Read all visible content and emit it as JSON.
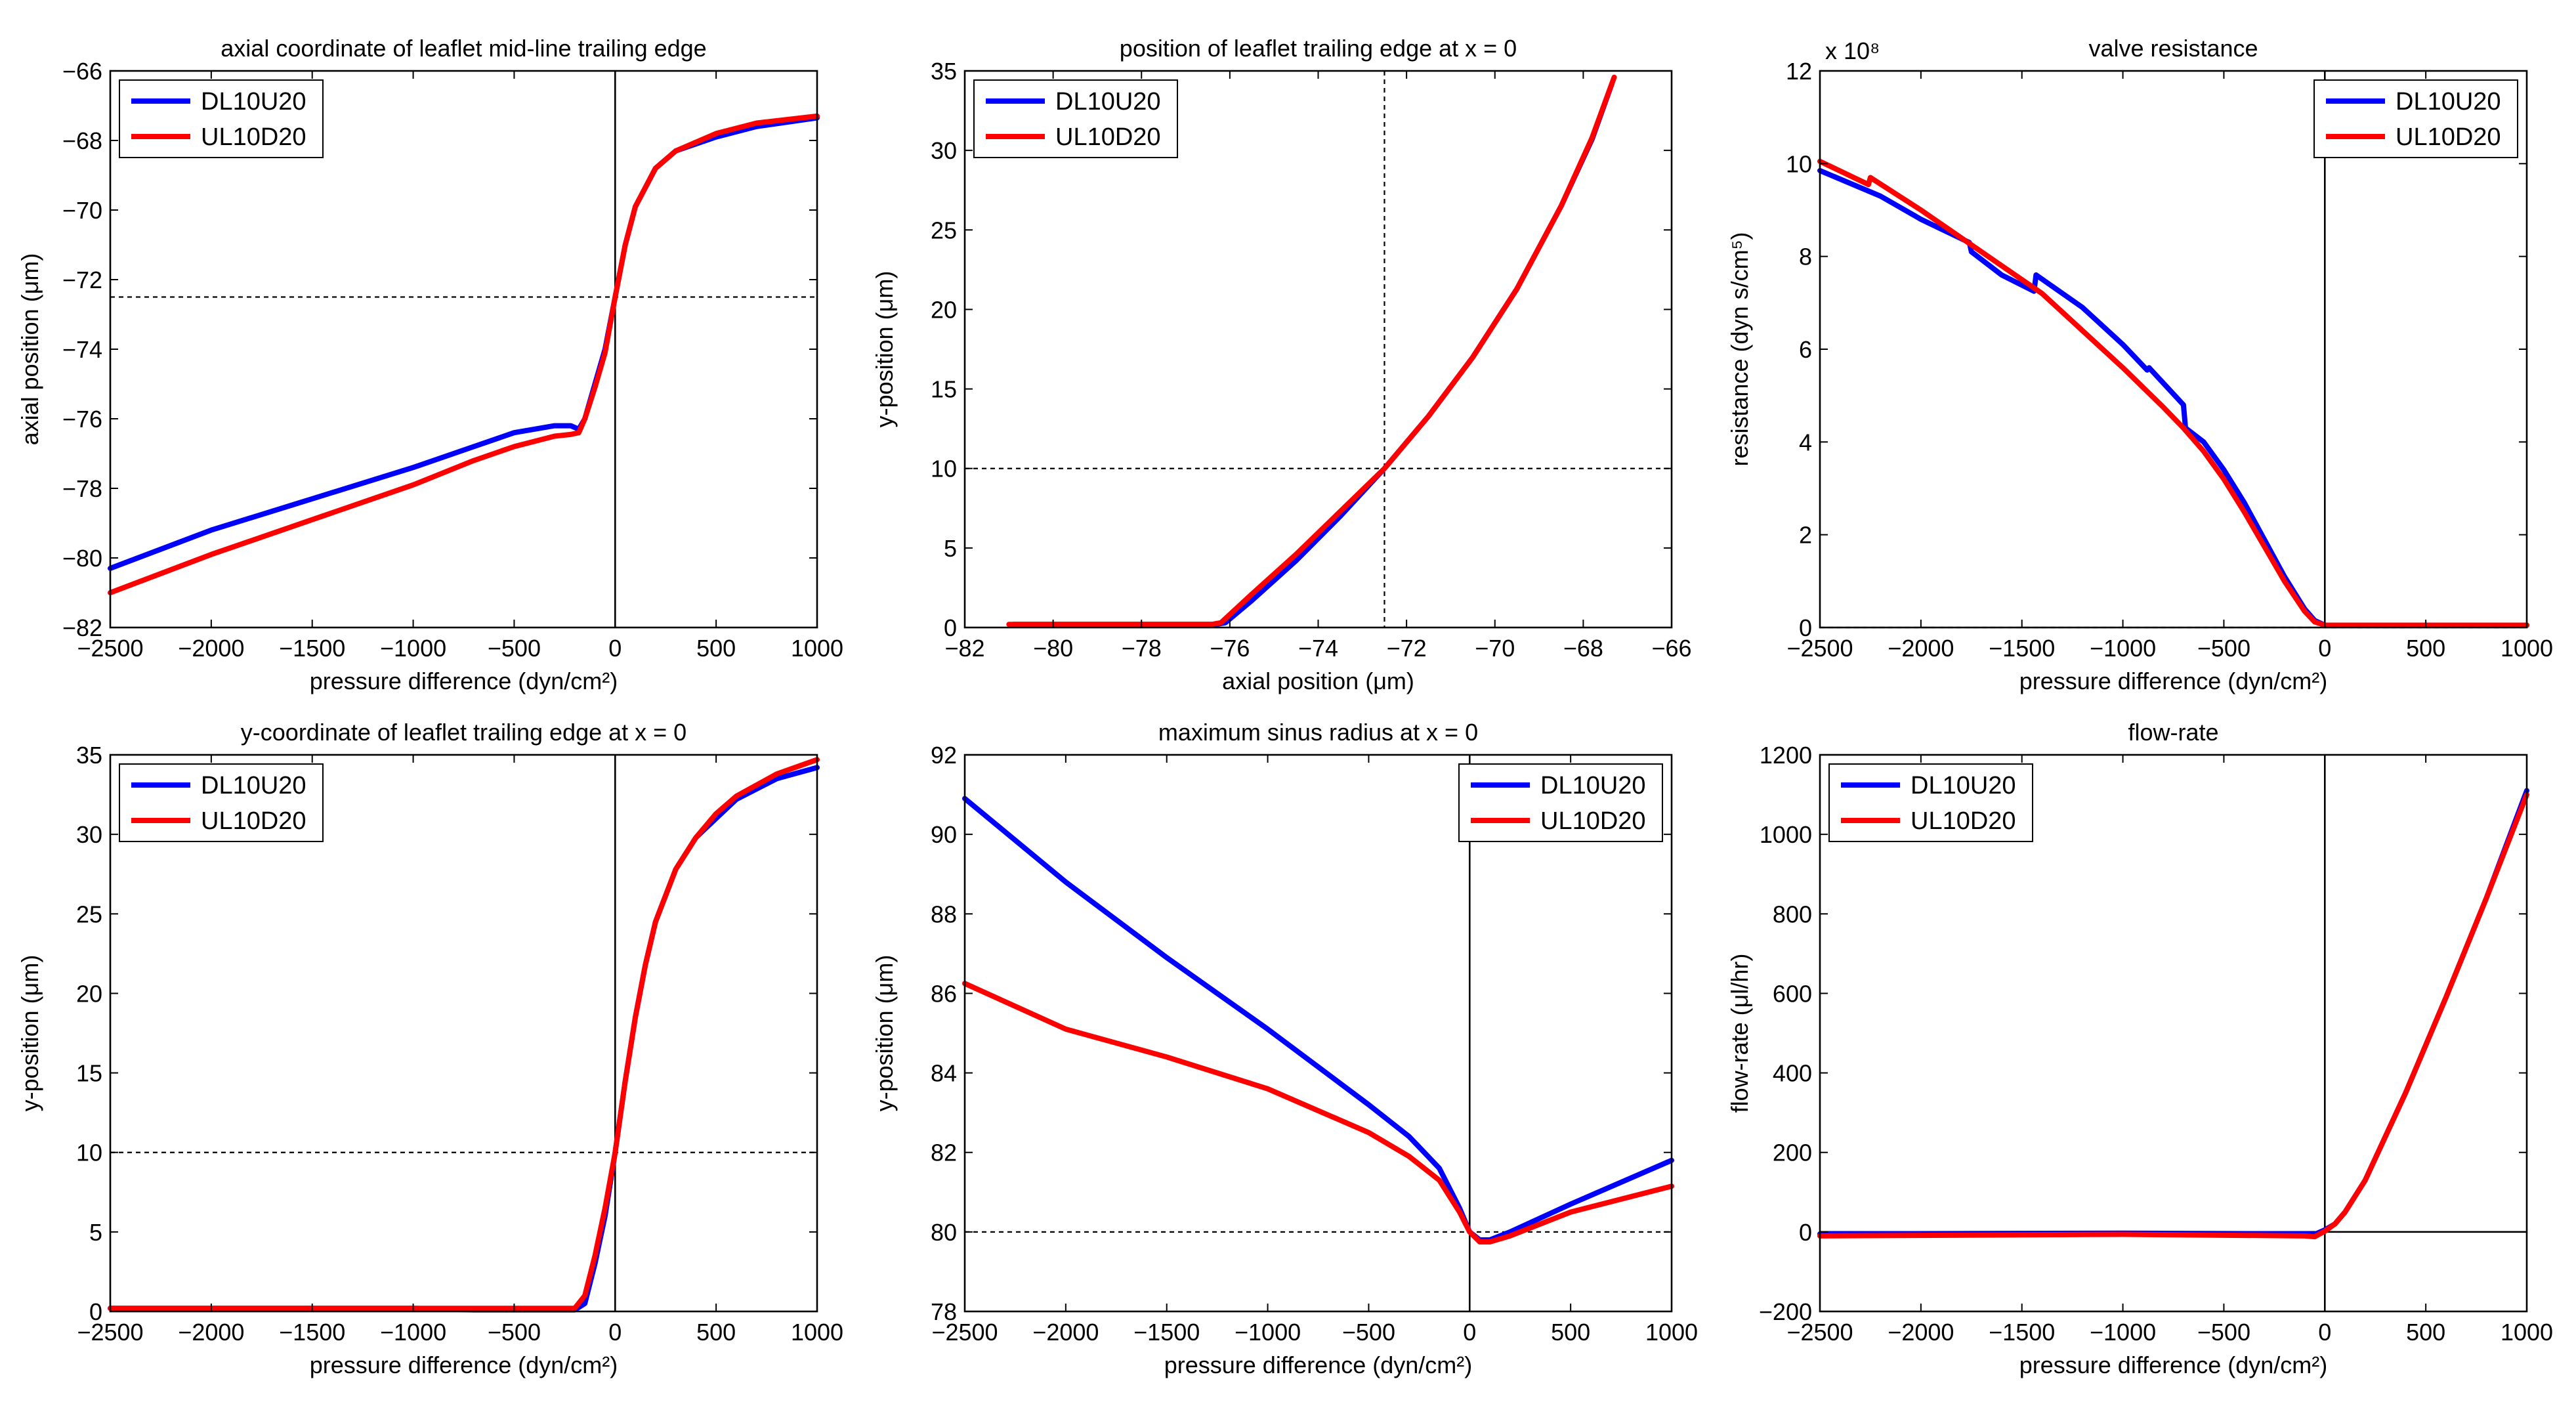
{
  "figure": {
    "colors": {
      "blue": "#0000ff",
      "red": "#ff0000",
      "axis": "#000000",
      "background": "#ffffff"
    },
    "legend_entries": [
      "DL10U20",
      "UL10D20"
    ]
  },
  "chart_data": [
    {
      "id": "a",
      "type": "line",
      "title": "axial coordinate of leaflet mid-line trailing edge",
      "xlabel": "pressure difference (dyn/cm²)",
      "ylabel": "axial position (μm)",
      "xlim": [
        -2500,
        1000
      ],
      "ylim": [
        -82,
        -66
      ],
      "xticks": [
        -2500,
        -2000,
        -1500,
        -1000,
        -500,
        0,
        500,
        1000
      ],
      "yticks": [
        -82,
        -80,
        -78,
        -76,
        -74,
        -72,
        -70,
        -68,
        -66
      ],
      "legend_position": "top-left",
      "ref_lines": [
        {
          "type": "h",
          "value": -72.5,
          "style": "dotted"
        },
        {
          "type": "v",
          "value": 0,
          "style": "solid"
        }
      ],
      "series": [
        {
          "name": "DL10U20",
          "color": "#0000ff",
          "x": [
            -2500,
            -2000,
            -1500,
            -1000,
            -700,
            -500,
            -300,
            -220,
            -180,
            -150,
            -100,
            -50,
            0,
            50,
            100,
            200,
            300,
            500,
            700,
            1000
          ],
          "y": [
            -80.3,
            -79.2,
            -78.3,
            -77.4,
            -76.8,
            -76.4,
            -76.2,
            -76.2,
            -76.3,
            -76.0,
            -75.0,
            -74.0,
            -72.5,
            -71.0,
            -69.9,
            -68.8,
            -68.3,
            -67.9,
            -67.6,
            -67.35
          ]
        },
        {
          "name": "UL10D20",
          "color": "#ff0000",
          "x": [
            -2500,
            -2000,
            -1500,
            -1000,
            -700,
            -500,
            -300,
            -220,
            -180,
            -150,
            -100,
            -50,
            0,
            50,
            100,
            200,
            300,
            500,
            700,
            1000
          ],
          "y": [
            -81.0,
            -79.9,
            -78.9,
            -77.9,
            -77.2,
            -76.8,
            -76.5,
            -76.45,
            -76.4,
            -76.0,
            -75.1,
            -74.1,
            -72.5,
            -71.0,
            -69.9,
            -68.8,
            -68.3,
            -67.8,
            -67.5,
            -67.3
          ]
        }
      ]
    },
    {
      "id": "b",
      "type": "line",
      "title": "position of leaflet trailing edge at x = 0",
      "xlabel": "axial position (μm)",
      "ylabel": "y-position (μm)",
      "xlim": [
        -82,
        -66
      ],
      "ylim": [
        0,
        35
      ],
      "xticks": [
        -82,
        -80,
        -78,
        -76,
        -74,
        -72,
        -70,
        -68,
        -66
      ],
      "yticks": [
        0,
        5,
        10,
        15,
        20,
        25,
        30,
        35
      ],
      "legend_position": "top-left",
      "ref_lines": [
        {
          "type": "h",
          "value": 10,
          "style": "dotted"
        },
        {
          "type": "v",
          "value": -72.5,
          "style": "dotted"
        }
      ],
      "series": [
        {
          "name": "DL10U20",
          "color": "#0000ff",
          "x": [
            -80.9,
            -77.0,
            -76.3,
            -76.1,
            -75.5,
            -74.5,
            -73.5,
            -72.5,
            -71.5,
            -70.5,
            -69.5,
            -68.5,
            -67.8,
            -67.35
          ],
          "y": [
            0.2,
            0.2,
            0.2,
            0.3,
            1.7,
            4.2,
            7.0,
            10.0,
            13.3,
            17.0,
            21.3,
            26.5,
            30.7,
            34.2
          ]
        },
        {
          "name": "UL10D20",
          "color": "#ff0000",
          "x": [
            -81.0,
            -77.0,
            -76.4,
            -76.2,
            -75.5,
            -74.5,
            -73.5,
            -72.5,
            -71.5,
            -70.5,
            -69.5,
            -68.5,
            -67.8,
            -67.3
          ],
          "y": [
            0.2,
            0.2,
            0.2,
            0.3,
            2.1,
            4.6,
            7.3,
            10.0,
            13.3,
            17.0,
            21.3,
            26.5,
            30.8,
            34.6
          ]
        }
      ]
    },
    {
      "id": "c",
      "type": "line",
      "title": "valve resistance",
      "xlabel": "pressure difference (dyn/cm²)",
      "ylabel": "resistance (dyn s/cm⁵)",
      "y_multiplier": "x 10⁸",
      "xlim": [
        -2500,
        1000
      ],
      "ylim": [
        0,
        12
      ],
      "xticks": [
        -2500,
        -2000,
        -1500,
        -1000,
        -500,
        0,
        500,
        1000
      ],
      "yticks": [
        0,
        2,
        4,
        6,
        8,
        10,
        12
      ],
      "legend_position": "top-right",
      "ref_lines": [
        {
          "type": "h",
          "value": 0,
          "style": "dotted"
        },
        {
          "type": "v",
          "value": 0,
          "style": "solid"
        }
      ],
      "series": [
        {
          "name": "DL10U20",
          "color": "#0000ff",
          "x": [
            -2500,
            -2200,
            -2000,
            -1760,
            -1750,
            -1600,
            -1440,
            -1430,
            -1200,
            -1000,
            -880,
            -870,
            -700,
            -690,
            -600,
            -500,
            -400,
            -300,
            -200,
            -100,
            -50,
            0,
            100,
            500,
            1000
          ],
          "y": [
            9.85,
            9.3,
            8.8,
            8.3,
            8.1,
            7.6,
            7.25,
            7.6,
            6.9,
            6.1,
            5.55,
            5.6,
            4.8,
            4.3,
            4.0,
            3.4,
            2.7,
            1.9,
            1.1,
            0.4,
            0.15,
            0.05,
            0.05,
            0.05,
            0.05
          ]
        },
        {
          "name": "UL10D20",
          "color": "#ff0000",
          "x": [
            -2500,
            -2260,
            -2250,
            -2000,
            -1800,
            -1600,
            -1400,
            -1200,
            -1000,
            -800,
            -700,
            -600,
            -500,
            -400,
            -300,
            -200,
            -100,
            -50,
            0,
            100,
            500,
            1000
          ],
          "y": [
            10.05,
            9.55,
            9.7,
            9.0,
            8.4,
            7.8,
            7.2,
            6.4,
            5.6,
            4.75,
            4.3,
            3.8,
            3.2,
            2.5,
            1.75,
            1.0,
            0.35,
            0.12,
            0.05,
            0.05,
            0.05,
            0.05
          ]
        }
      ]
    },
    {
      "id": "d",
      "type": "line",
      "title": "y-coordinate of leaflet trailing edge at x = 0",
      "xlabel": "pressure difference (dyn/cm²)",
      "ylabel": "y-position (μm)",
      "xlim": [
        -2500,
        1000
      ],
      "ylim": [
        0,
        35
      ],
      "xticks": [
        -2500,
        -2000,
        -1500,
        -1000,
        -500,
        0,
        500,
        1000
      ],
      "yticks": [
        0,
        5,
        10,
        15,
        20,
        25,
        30,
        35
      ],
      "legend_position": "top-left",
      "ref_lines": [
        {
          "type": "h",
          "value": 10,
          "style": "dotted"
        },
        {
          "type": "v",
          "value": 0,
          "style": "solid"
        }
      ],
      "series": [
        {
          "name": "DL10U20",
          "color": "#0000ff",
          "x": [
            -2500,
            -1000,
            -700,
            -200,
            -150,
            -100,
            -50,
            0,
            50,
            100,
            150,
            200,
            300,
            400,
            500,
            600,
            800,
            1000
          ],
          "y": [
            0.2,
            0.2,
            0.1,
            0.1,
            0.5,
            3.0,
            6.0,
            10.0,
            14.5,
            18.5,
            21.8,
            24.5,
            27.8,
            29.8,
            31.0,
            32.2,
            33.5,
            34.2
          ]
        },
        {
          "name": "UL10D20",
          "color": "#ff0000",
          "x": [
            -2500,
            -1000,
            -700,
            -200,
            -150,
            -100,
            -50,
            0,
            50,
            100,
            150,
            200,
            300,
            400,
            500,
            600,
            800,
            1000
          ],
          "y": [
            0.2,
            0.2,
            0.2,
            0.2,
            1.0,
            3.5,
            6.5,
            10.0,
            14.5,
            18.5,
            21.8,
            24.5,
            27.8,
            29.8,
            31.3,
            32.4,
            33.8,
            34.7
          ]
        }
      ]
    },
    {
      "id": "e",
      "type": "line",
      "title": "maximum sinus radius at x = 0",
      "xlabel": "pressure difference (dyn/cm²)",
      "ylabel": "y-position (μm)",
      "xlim": [
        -2500,
        1000
      ],
      "ylim": [
        78,
        92
      ],
      "xticks": [
        -2500,
        -2000,
        -1500,
        -1000,
        -500,
        0,
        500,
        1000
      ],
      "yticks": [
        78,
        80,
        82,
        84,
        86,
        88,
        90,
        92
      ],
      "legend_position": "top-right",
      "ref_lines": [
        {
          "type": "h",
          "value": 80,
          "style": "dotted"
        },
        {
          "type": "v",
          "value": 0,
          "style": "solid"
        }
      ],
      "series": [
        {
          "name": "DL10U20",
          "color": "#0000ff",
          "x": [
            -2500,
            -2000,
            -1500,
            -1000,
            -500,
            -300,
            -150,
            -50,
            0,
            50,
            100,
            200,
            500,
            1000
          ],
          "y": [
            90.9,
            88.8,
            86.9,
            85.1,
            83.2,
            82.4,
            81.6,
            80.6,
            80.0,
            79.8,
            79.8,
            80.0,
            80.7,
            81.8
          ]
        },
        {
          "name": "UL10D20",
          "color": "#ff0000",
          "x": [
            -2500,
            -2000,
            -1500,
            -1000,
            -500,
            -300,
            -150,
            -50,
            0,
            50,
            100,
            200,
            500,
            1000
          ],
          "y": [
            86.25,
            85.1,
            84.4,
            83.6,
            82.5,
            81.9,
            81.3,
            80.5,
            80.0,
            79.75,
            79.75,
            79.9,
            80.5,
            81.15
          ]
        }
      ]
    },
    {
      "id": "f",
      "type": "line",
      "title": "flow-rate",
      "xlabel": "pressure difference (dyn/cm²)",
      "ylabel": "flow-rate (μl/hr)",
      "xlim": [
        -2500,
        1000
      ],
      "ylim": [
        -200,
        1200
      ],
      "xticks": [
        -2500,
        -2000,
        -1500,
        -1000,
        -500,
        0,
        500,
        1000
      ],
      "yticks": [
        -200,
        0,
        200,
        400,
        600,
        800,
        1000,
        1200
      ],
      "legend_position": "top-left",
      "ref_lines": [
        {
          "type": "h",
          "value": 0,
          "style": "solid"
        },
        {
          "type": "v",
          "value": 0,
          "style": "solid"
        }
      ],
      "series": [
        {
          "name": "DL10U20",
          "color": "#0000ff",
          "x": [
            -2500,
            -1000,
            -100,
            -50,
            0,
            50,
            100,
            200,
            400,
            600,
            800,
            1000
          ],
          "y": [
            -5,
            -3,
            -5,
            -6,
            5,
            20,
            50,
            130,
            350,
            590,
            840,
            1110
          ]
        },
        {
          "name": "UL10D20",
          "color": "#ff0000",
          "x": [
            -2500,
            -1000,
            -100,
            -50,
            0,
            50,
            100,
            200,
            400,
            600,
            800,
            1000
          ],
          "y": [
            -10,
            -6,
            -10,
            -12,
            2,
            20,
            50,
            130,
            350,
            590,
            840,
            1100
          ]
        }
      ]
    }
  ]
}
